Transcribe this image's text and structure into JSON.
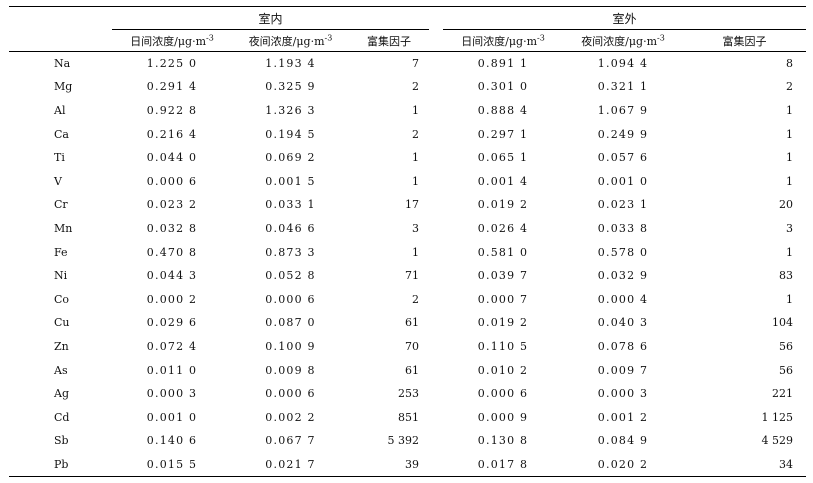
{
  "header": {
    "indoor_label": "室内",
    "outdoor_label": "室外",
    "columns": {
      "day": "日间浓度/μg·m",
      "night": "夜间浓度/μg·m",
      "exp": "-3",
      "ef": "富集因子"
    }
  },
  "rows": [
    {
      "el": "Na",
      "in_day": "1.225 0",
      "in_night": "1.193 4",
      "in_ef": "7",
      "out_day": "0.891 1",
      "out_night": "1.094 4",
      "out_ef": "8"
    },
    {
      "el": "Mg",
      "in_day": "0.291 4",
      "in_night": "0.325 9",
      "in_ef": "2",
      "out_day": "0.301 0",
      "out_night": "0.321 1",
      "out_ef": "2"
    },
    {
      "el": "Al",
      "in_day": "0.922 8",
      "in_night": "1.326 3",
      "in_ef": "1",
      "out_day": "0.888 4",
      "out_night": "1.067 9",
      "out_ef": "1"
    },
    {
      "el": "Ca",
      "in_day": "0.216 4",
      "in_night": "0.194 5",
      "in_ef": "2",
      "out_day": "0.297 1",
      "out_night": "0.249 9",
      "out_ef": "1"
    },
    {
      "el": "Ti",
      "in_day": "0.044 0",
      "in_night": "0.069 2",
      "in_ef": "1",
      "out_day": "0.065 1",
      "out_night": "0.057 6",
      "out_ef": "1"
    },
    {
      "el": "V",
      "in_day": "0.000 6",
      "in_night": "0.001 5",
      "in_ef": "1",
      "out_day": "0.001 4",
      "out_night": "0.001 0",
      "out_ef": "1"
    },
    {
      "el": "Cr",
      "in_day": "0.023 2",
      "in_night": "0.033 1",
      "in_ef": "17",
      "out_day": "0.019 2",
      "out_night": "0.023 1",
      "out_ef": "20"
    },
    {
      "el": "Mn",
      "in_day": "0.032 8",
      "in_night": "0.046 6",
      "in_ef": "3",
      "out_day": "0.026 4",
      "out_night": "0.033 8",
      "out_ef": "3"
    },
    {
      "el": "Fe",
      "in_day": "0.470 8",
      "in_night": "0.873 3",
      "in_ef": "1",
      "out_day": "0.581 0",
      "out_night": "0.578 0",
      "out_ef": "1"
    },
    {
      "el": "Ni",
      "in_day": "0.044 3",
      "in_night": "0.052 8",
      "in_ef": "71",
      "out_day": "0.039 7",
      "out_night": "0.032 9",
      "out_ef": "83"
    },
    {
      "el": "Co",
      "in_day": "0.000 2",
      "in_night": "0.000 6",
      "in_ef": "2",
      "out_day": "0.000 7",
      "out_night": "0.000 4",
      "out_ef": "1"
    },
    {
      "el": "Cu",
      "in_day": "0.029 6",
      "in_night": "0.087 0",
      "in_ef": "61",
      "out_day": "0.019 2",
      "out_night": "0.040 3",
      "out_ef": "104"
    },
    {
      "el": "Zn",
      "in_day": "0.072 4",
      "in_night": "0.100 9",
      "in_ef": "70",
      "out_day": "0.110 5",
      "out_night": "0.078 6",
      "out_ef": "56"
    },
    {
      "el": "As",
      "in_day": "0.011 0",
      "in_night": "0.009 8",
      "in_ef": "61",
      "out_day": "0.010 2",
      "out_night": "0.009 7",
      "out_ef": "56"
    },
    {
      "el": "Ag",
      "in_day": "0.000 3",
      "in_night": "0.000 6",
      "in_ef": "253",
      "out_day": "0.000 6",
      "out_night": "0.000 3",
      "out_ef": "221"
    },
    {
      "el": "Cd",
      "in_day": "0.001 0",
      "in_night": "0.002 2",
      "in_ef": "851",
      "out_day": "0.000 9",
      "out_night": "0.001 2",
      "out_ef": "1 125"
    },
    {
      "el": "Sb",
      "in_day": "0.140 6",
      "in_night": "0.067 7",
      "in_ef": "5 392",
      "out_day": "0.130 8",
      "out_night": "0.084 9",
      "out_ef": "4 529"
    },
    {
      "el": "Pb",
      "in_day": "0.015 5",
      "in_night": "0.021 7",
      "in_ef": "39",
      "out_day": "0.017 8",
      "out_night": "0.020 2",
      "out_ef": "34"
    }
  ]
}
